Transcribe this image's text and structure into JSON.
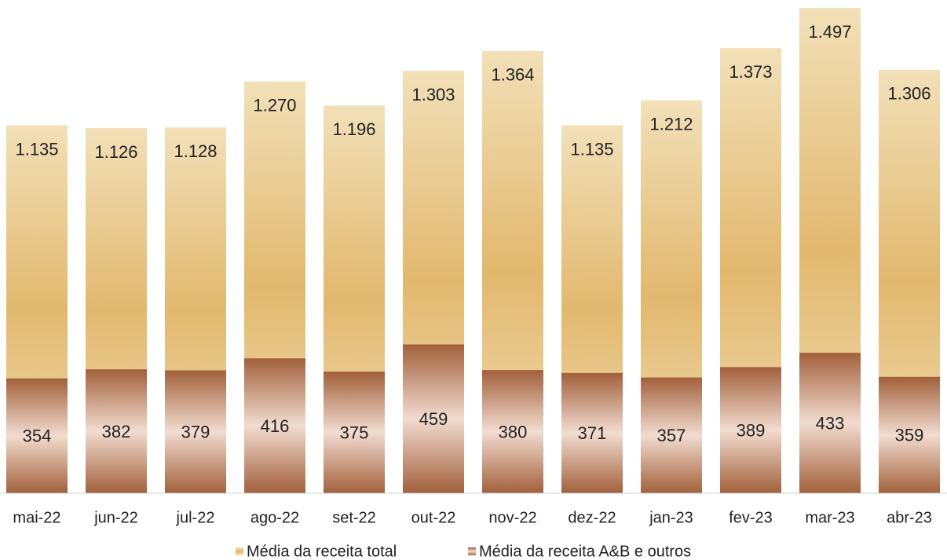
{
  "chart_data": {
    "type": "bar",
    "overlap": true,
    "categories": [
      "mai-22",
      "jun-22",
      "jul-22",
      "ago-22",
      "set-22",
      "out-22",
      "nov-22",
      "dez-22",
      "jan-23",
      "fev-23",
      "mar-23",
      "abr-23"
    ],
    "series": [
      {
        "name": "Média da receita total",
        "color": "#e2b86e",
        "values": [
          1135,
          1126,
          1128,
          1270,
          1196,
          1303,
          1364,
          1135,
          1212,
          1373,
          1497,
          1306
        ],
        "value_labels": [
          "1.135",
          "1.126",
          "1.128",
          "1.270",
          "1.196",
          "1.303",
          "1.364",
          "1.135",
          "1.212",
          "1.373",
          "1.497",
          "1.306"
        ]
      },
      {
        "name": "Média da receita A&B e outros",
        "color": "#a2603b",
        "values": [
          354,
          382,
          379,
          416,
          375,
          459,
          380,
          371,
          357,
          389,
          433,
          359
        ]
      }
    ],
    "legend": "bottom"
  }
}
